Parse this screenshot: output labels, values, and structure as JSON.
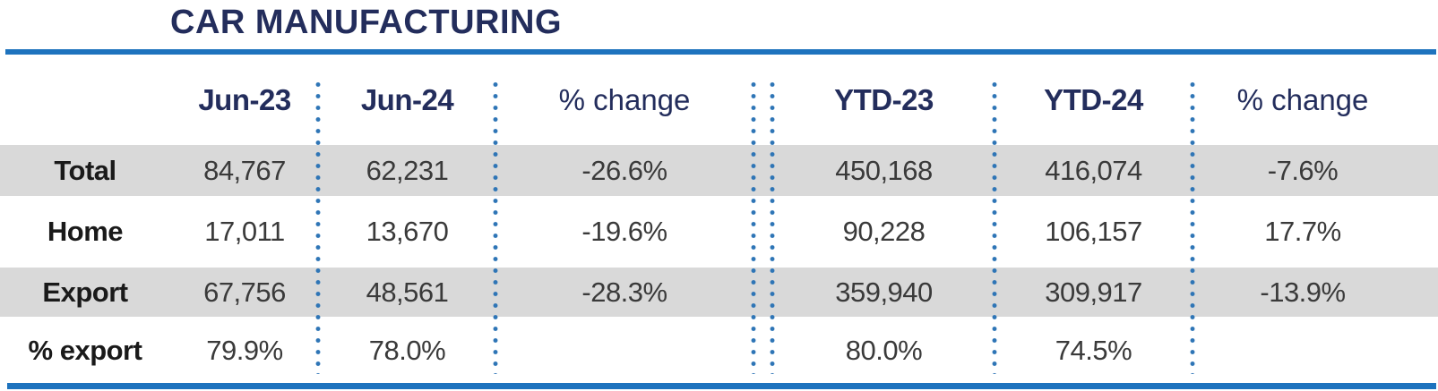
{
  "title": "CAR MANUFACTURING",
  "table": {
    "headers": [
      "Jun-23",
      "Jun-24",
      "% change",
      "YTD-23",
      "YTD-24",
      "% change"
    ],
    "rows": [
      {
        "label": "Total",
        "cells": [
          "84,767",
          "62,231",
          "-26.6%",
          "450,168",
          "416,074",
          "-7.6%"
        ]
      },
      {
        "label": "Home",
        "cells": [
          "17,011",
          "13,670",
          "-19.6%",
          "90,228",
          "106,157",
          "17.7%"
        ]
      },
      {
        "label": "Export",
        "cells": [
          "67,756",
          "48,561",
          "-28.3%",
          "359,940",
          "309,917",
          "-13.9%"
        ]
      },
      {
        "label": "% export",
        "cells": [
          "79.9%",
          "78.0%",
          "",
          "80.0%",
          "74.5%",
          ""
        ]
      }
    ]
  },
  "chart_data": {
    "type": "table",
    "title": "CAR MANUFACTURING",
    "columns": [
      "",
      "Jun-23",
      "Jun-24",
      "% change",
      "YTD-23",
      "YTD-24",
      "% change"
    ],
    "rows": [
      [
        "Total",
        84767,
        62231,
        "-26.6%",
        450168,
        416074,
        "-7.6%"
      ],
      [
        "Home",
        17011,
        13670,
        "-19.6%",
        90228,
        106157,
        "17.7%"
      ],
      [
        "Export",
        67756,
        48561,
        "-28.3%",
        359940,
        309917,
        "-13.9%"
      ],
      [
        "% export",
        "79.9%",
        "78.0%",
        "",
        "80.0%",
        "74.5%",
        ""
      ]
    ],
    "layout_hints": {
      "striped_rows": [
        "Total",
        "Export"
      ],
      "column_groups": [
        [
          "Jun-23",
          "Jun-24",
          "% change"
        ],
        [
          "YTD-23",
          "YTD-24",
          "% change"
        ]
      ],
      "separator_style": "blue dotted vertical lines, double dotted between groups"
    }
  },
  "colors": {
    "navy_text": "#232d5c",
    "blue_rule": "#1e73be",
    "dot_blue": "#2e75b6",
    "band_gray": "#d9d9d9",
    "value_text": "#3a3a3a",
    "label_text": "#1a1a1a"
  }
}
